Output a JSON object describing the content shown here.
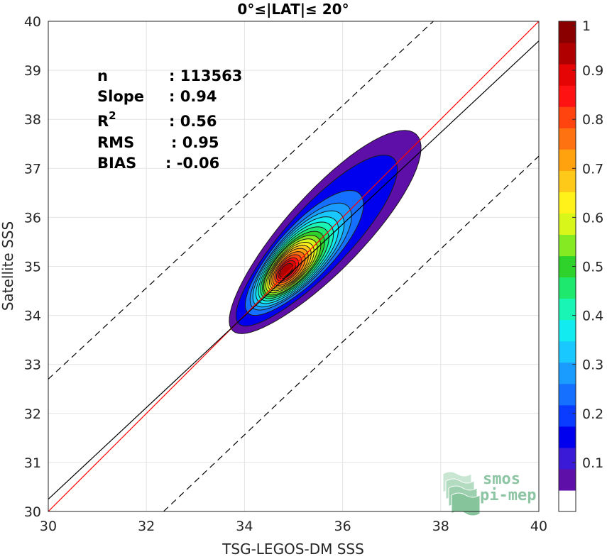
{
  "chart_data": {
    "type": "contour",
    "title": "0°≤|LAT|≤ 20°",
    "xlabel": "TSG-LEGOS-DM SSS",
    "ylabel": "Satellite SSS",
    "xlim": [
      30,
      40
    ],
    "ylim": [
      30,
      40
    ],
    "xticks": [
      "30",
      "32",
      "34",
      "36",
      "38",
      "40"
    ],
    "yticks": [
      "30",
      "31",
      "32",
      "33",
      "34",
      "35",
      "36",
      "37",
      "38",
      "39",
      "40"
    ],
    "grid": true,
    "stats": [
      {
        "label": "n",
        "value": ": 113563"
      },
      {
        "label": "Slope",
        "value": ": 0.94"
      },
      {
        "label": "R",
        "sup": "2",
        "value": ": 0.56"
      },
      {
        "label": "RMS",
        "value": ": 0.95"
      },
      {
        "label": "BIAS",
        "value": ": -0.06"
      }
    ],
    "lines": [
      {
        "name": "identity",
        "color": "#ff0000",
        "style": "solid",
        "x": [
          30,
          40
        ],
        "y": [
          30,
          40
        ]
      },
      {
        "name": "fit",
        "color": "#000000",
        "style": "solid",
        "x": [
          30,
          40
        ],
        "y": [
          30.25,
          39.6
        ]
      },
      {
        "name": "upper",
        "color": "#000000",
        "style": "dashed",
        "x": [
          30,
          37.85
        ],
        "y": [
          32.7,
          40
        ]
      },
      {
        "name": "lower",
        "color": "#000000",
        "style": "dashed",
        "x": [
          32.35,
          40
        ],
        "y": [
          30,
          37.25
        ]
      }
    ],
    "density_center": [
      34.95,
      35.0
    ],
    "colorbar": {
      "min": 0,
      "max": 1,
      "ticks": [
        "0.1",
        "0.2",
        "0.3",
        "0.4",
        "0.5",
        "0.6",
        "0.7",
        "0.8",
        "0.9",
        "1"
      ],
      "levels": [
        0.05,
        0.1,
        0.15,
        0.2,
        0.25,
        0.3,
        0.35,
        0.4,
        0.45,
        0.5,
        0.55,
        0.6,
        0.65,
        0.7,
        0.75,
        0.8,
        0.85,
        0.9,
        0.95
      ],
      "colors": [
        "#ffffff",
        "#5e0fa8",
        "#3a1ad6",
        "#0000ee",
        "#0a3cff",
        "#1670ff",
        "#1a9cff",
        "#19c8ff",
        "#12ecf0",
        "#18f5b5",
        "#1ee86e",
        "#2fd22a",
        "#86ea22",
        "#d8f61a",
        "#fff21a",
        "#ffc91a",
        "#ffa20e",
        "#ff7212",
        "#ff4410",
        "#ff1212",
        "#e60505",
        "#b10000",
        "#8a0000"
      ]
    }
  },
  "logo": {
    "line1": "smos",
    "line2": "pi-mep"
  }
}
